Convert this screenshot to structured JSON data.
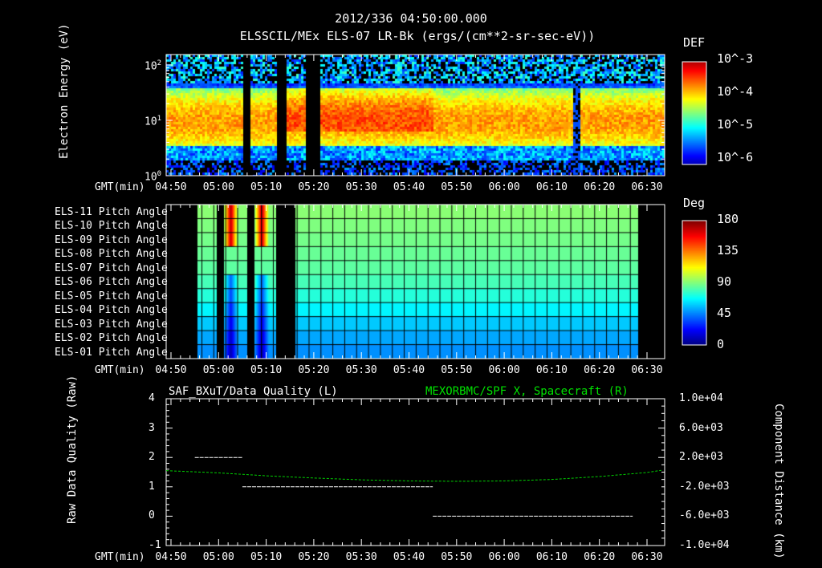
{
  "header": {
    "timestamp": "2012/336 04:50:00.000",
    "title": "ELSSCIL/MEx ELS-07 LR-Bk  (ergs/(cm**2-sr-sec-eV))"
  },
  "chart_data": [
    {
      "type": "heatmap",
      "name": "energy-spectrogram",
      "ylabel": "Electron Energy (eV)",
      "yscale": "log",
      "ylim": [
        1,
        160
      ],
      "yticks": [
        "10^0",
        "10^1",
        "10^2"
      ],
      "xlabel": "GMT(min)",
      "xticks": [
        "04:50",
        "05:00",
        "05:10",
        "05:20",
        "05:30",
        "05:40",
        "05:50",
        "06:00",
        "06:10",
        "06:20",
        "06:30"
      ],
      "colorbar": {
        "label": "DEF",
        "ticks": [
          "10^-3",
          "10^-4",
          "10^-5",
          "10^-6"
        ],
        "range": [
          1e-06,
          0.001
        ]
      },
      "data_gaps_min": [
        [
          15,
          16.5
        ],
        [
          22,
          24
        ],
        [
          28,
          31
        ]
      ]
    },
    {
      "type": "heatmap",
      "name": "pitch-angle",
      "rows": [
        "ELS-11 Pitch Angle",
        "ELS-10 Pitch Angle",
        "ELS-09 Pitch Angle",
        "ELS-08 Pitch Angle",
        "ELS-07 Pitch Angle",
        "ELS-06 Pitch Angle",
        "ELS-05 Pitch Angle",
        "ELS-04 Pitch Angle",
        "ELS-03 Pitch Angle",
        "ELS-02 Pitch Angle",
        "ELS-01 Pitch Angle"
      ],
      "row_values_deg": [
        92,
        90,
        88,
        86,
        84,
        80,
        74,
        66,
        58,
        52,
        48
      ],
      "xlabel": "GMT(min)",
      "xticks": [
        "04:50",
        "05:00",
        "05:10",
        "05:20",
        "05:30",
        "05:40",
        "05:50",
        "06:00",
        "06:10",
        "06:20",
        "06:30"
      ],
      "colorbar": {
        "label": "Deg",
        "ticks": [
          "180",
          "135",
          "90",
          "45",
          "0"
        ],
        "range": [
          0,
          180
        ]
      },
      "data_range_min": [
        5.5,
        98
      ],
      "data_gaps_min": [
        [
          9.5,
          11
        ],
        [
          16,
          17.5
        ],
        [
          22,
          26
        ]
      ]
    },
    {
      "type": "line",
      "name": "quality-and-position",
      "title_left": "SAF_BXuT/Data Quality (L)",
      "title_right": "MEXORBMC/SPF X, Spacecraft (R)",
      "ylabel": "Raw Data Quality (Raw)",
      "y2label": "Component Distance (km)",
      "ylim": [
        -1,
        4
      ],
      "yticks": [
        "4",
        "3",
        "2",
        "1",
        "0",
        "-1"
      ],
      "y2lim": [
        -10000,
        10000
      ],
      "y2ticks": [
        "1.0e+04",
        "6.0e+03",
        "2.0e+03",
        "-2.0e+03",
        "-6.0e+03",
        "-1.0e+04"
      ],
      "xlabel": "GMT(min)",
      "xticks": [
        "04:50",
        "05:00",
        "05:10",
        "05:20",
        "05:30",
        "05:40",
        "05:50",
        "06:00",
        "06:10",
        "06:20",
        "06:30"
      ],
      "series": [
        {
          "name": "Data Quality",
          "color": "#ffffff",
          "segments": [
            {
              "x": [
                5,
                15
              ],
              "y": 2
            },
            {
              "x": [
                15,
                55
              ],
              "y": 1
            },
            {
              "x": [
                55,
                97
              ],
              "y": 0
            }
          ]
        },
        {
          "name": "Spacecraft X",
          "color": "#00ff00",
          "x_min": [
            -1,
            10,
            20,
            30,
            40,
            50,
            60,
            70,
            80,
            90,
            100,
            103
          ],
          "y_km": [
            200,
            -100,
            -500,
            -800,
            -1050,
            -1200,
            -1250,
            -1200,
            -1000,
            -600,
            -50,
            250
          ]
        }
      ]
    }
  ]
}
